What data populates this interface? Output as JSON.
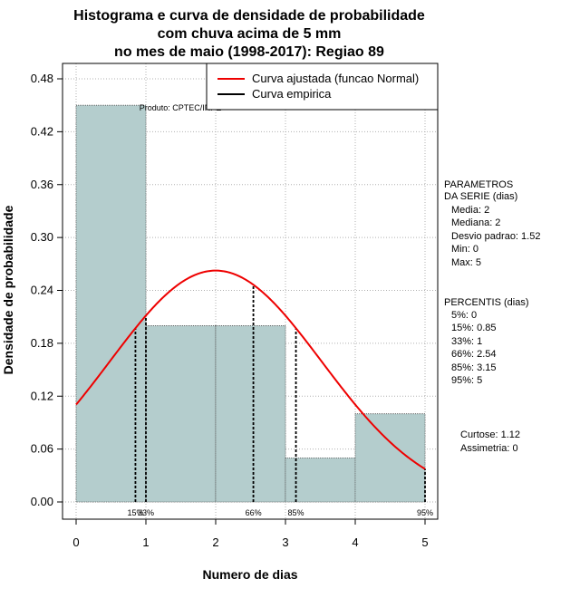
{
  "chart_data": {
    "type": "bar",
    "title_lines": [
      "Histograma e curva de densidade de probabilidade",
      "com chuva acima de 5 mm",
      "no mes de maio (1998-2017): Regiao 89"
    ],
    "xlabel": "Numero de dias",
    "ylabel": "Densidade de probabilidade",
    "xlim": [
      -0.2,
      5.2
    ],
    "ylim": [
      -0.02,
      0.5
    ],
    "x_ticks": [
      0,
      1,
      2,
      3,
      4,
      5
    ],
    "y_ticks": [
      0.0,
      0.06,
      0.12,
      0.18,
      0.24,
      0.3,
      0.36,
      0.42,
      0.48
    ],
    "y_tick_labels": [
      "0.00",
      "0.06",
      "0.12",
      "0.18",
      "0.24",
      "0.30",
      "0.36",
      "0.42",
      "0.48"
    ],
    "bins": [
      {
        "start": 0,
        "end": 1,
        "density": 0.45
      },
      {
        "start": 1,
        "end": 2,
        "density": 0.2
      },
      {
        "start": 2,
        "end": 3,
        "density": 0.2
      },
      {
        "start": 3,
        "end": 4,
        "density": 0.05
      },
      {
        "start": 4,
        "end": 5,
        "density": 0.1
      }
    ],
    "fitted_curve": {
      "name": "Curva ajustada (funcao Normal)",
      "color": "#ee0000",
      "distribution": "normal",
      "mean": 2,
      "sd": 1.52
    },
    "empirical_curve": {
      "name": "Curva empirica",
      "color": "#000000"
    },
    "percentile_lines": [
      {
        "label": "15%",
        "x": 0.85
      },
      {
        "label": "33%",
        "x": 1
      },
      {
        "label": "66%",
        "x": 2.54
      },
      {
        "label": "85%",
        "x": 3.15
      },
      {
        "label": "95%",
        "x": 5
      }
    ],
    "product_label": "Produto: CPTEC/INPE",
    "bar_color": "#b4cdcd",
    "parametros": {
      "heading": [
        "PARAMETROS",
        "DA SERIE (dias)"
      ],
      "lines": [
        "Media: 2",
        "Mediana: 2",
        "Desvio padrao: 1.52",
        "Min: 0",
        "Max: 5"
      ]
    },
    "percentis": {
      "heading": "PERCENTIS (dias)",
      "lines": [
        "5%: 0",
        "15%: 0.85",
        "33%: 1",
        "66%: 2.54",
        "85%: 3.15",
        "95%: 5"
      ]
    },
    "stats": {
      "lines": [
        "Curtose: 1.12",
        "Assimetria: 0"
      ]
    }
  }
}
